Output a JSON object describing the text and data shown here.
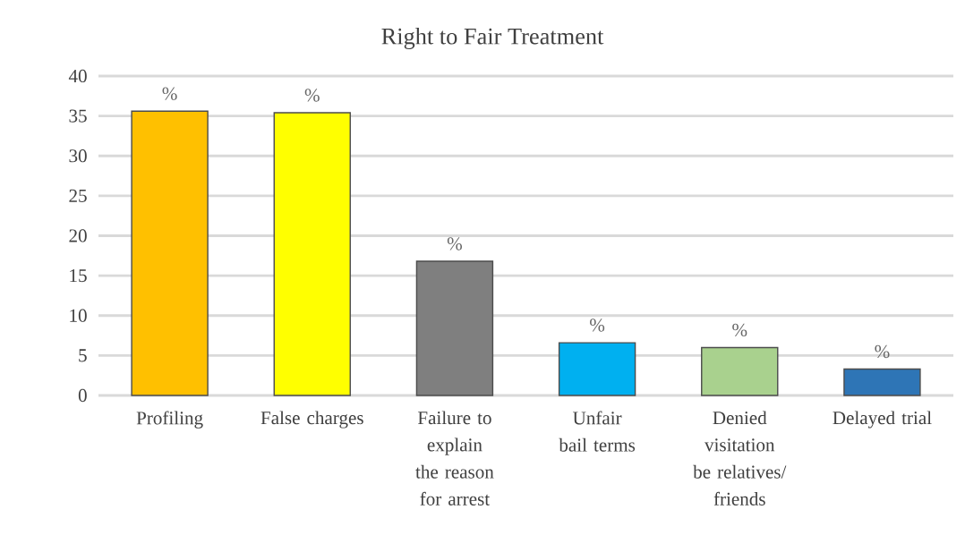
{
  "chart_data": {
    "type": "bar",
    "title": "Right to Fair Treatment",
    "categories": [
      "Profiling",
      "False charges",
      "Failure to explain the reason for arrest",
      "Unfair bail terms",
      "Denied visitation be relatives/ friends",
      "Delayed trial"
    ],
    "values": [
      35.6,
      35.4,
      16.8,
      6.6,
      6.0,
      3.3
    ],
    "colors": [
      "#ffc000",
      "#ffff00",
      "#7f7f7f",
      "#00b0f0",
      "#a9d18e",
      "#2e75b6"
    ],
    "value_labels": [
      "%",
      "%",
      "%",
      "%",
      "%",
      "%"
    ],
    "ylim": [
      0,
      40
    ],
    "yticks": [
      0,
      5,
      10,
      15,
      20,
      25,
      30,
      35,
      40
    ],
    "grid": "y"
  }
}
